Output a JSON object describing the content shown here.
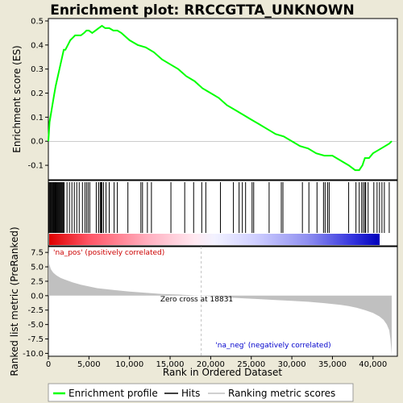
{
  "chart_data": {
    "type": "line",
    "title": "Enrichment plot: RRCCGTTA_UNKNOWN",
    "xlabel": "Rank in Ordered Dataset",
    "ylabel_top": "Enrichment score (ES)",
    "ylabel_bottom": "Ranked list metric (PreRanked)",
    "x_range": [
      0,
      43000
    ],
    "x_ticks": [
      0,
      5000,
      10000,
      15000,
      20000,
      25000,
      30000,
      35000,
      40000
    ],
    "x_tick_labels": [
      "0",
      "5,000",
      "10,000",
      "15,000",
      "20,000",
      "25,000",
      "30,000",
      "35,000",
      "40,000"
    ],
    "es_ylim": [
      -0.16,
      0.51
    ],
    "es_ticks": [
      -0.1,
      0.0,
      0.1,
      0.2,
      0.3,
      0.4,
      0.5
    ],
    "es_tick_labels": [
      "-0.1",
      "0.0",
      "0.1",
      "0.2",
      "0.3",
      "0.4",
      "0.5"
    ],
    "metric_ylim": [
      -10.5,
      8.5
    ],
    "metric_ticks": [
      7.5,
      5.0,
      2.5,
      0.0,
      -2.5,
      -5.0,
      -7.5,
      -10.0
    ],
    "metric_tick_labels": [
      "7.5",
      "5.0",
      "2.5",
      "0.0",
      "-2.5",
      "-5.0",
      "-7.5",
      "-10.0"
    ],
    "enrichment_profile": {
      "x": [
        0,
        150,
        300,
        500,
        700,
        900,
        1100,
        1300,
        1500,
        1700,
        1900,
        2100,
        2400,
        2700,
        3000,
        3300,
        3600,
        4000,
        4400,
        4700,
        5000,
        5400,
        5800,
        6200,
        6600,
        7000,
        7500,
        8000,
        8500,
        9000,
        10000,
        11000,
        12000,
        13000,
        14000,
        15000,
        16000,
        17000,
        18000,
        19000,
        20000,
        21000,
        22000,
        23000,
        24000,
        25000,
        26000,
        27000,
        28000,
        29000,
        30000,
        31000,
        32000,
        33000,
        34000,
        35000,
        36000,
        37000,
        37800,
        38300,
        38700,
        39000,
        39500,
        40000,
        40500,
        41000,
        41500,
        42000,
        42300
      ],
      "y": [
        0.0,
        0.08,
        0.11,
        0.15,
        0.19,
        0.23,
        0.26,
        0.29,
        0.32,
        0.35,
        0.38,
        0.38,
        0.4,
        0.42,
        0.43,
        0.44,
        0.44,
        0.44,
        0.45,
        0.46,
        0.46,
        0.45,
        0.46,
        0.47,
        0.48,
        0.47,
        0.47,
        0.46,
        0.46,
        0.45,
        0.42,
        0.4,
        0.39,
        0.37,
        0.34,
        0.32,
        0.3,
        0.27,
        0.25,
        0.22,
        0.2,
        0.18,
        0.15,
        0.13,
        0.11,
        0.09,
        0.07,
        0.05,
        0.03,
        0.02,
        0.0,
        -0.02,
        -0.03,
        -0.05,
        -0.06,
        -0.06,
        -0.08,
        -0.1,
        -0.12,
        -0.12,
        -0.1,
        -0.07,
        -0.07,
        -0.05,
        -0.04,
        -0.03,
        -0.02,
        -0.01,
        0.0
      ]
    },
    "hits": [
      80,
      180,
      260,
      340,
      420,
      520,
      600,
      700,
      800,
      880,
      960,
      1050,
      1150,
      1250,
      1350,
      1450,
      1550,
      1650,
      1750,
      1850,
      1950,
      2300,
      2600,
      2900,
      3200,
      3500,
      3800,
      4200,
      4500,
      4700,
      4900,
      5100,
      5900,
      6200,
      6400,
      6500,
      6600,
      6800,
      7100,
      7500,
      8100,
      8500,
      9800,
      11400,
      11600,
      12200,
      12700,
      15100,
      16800,
      17900,
      18900,
      19400,
      21200,
      22800,
      23500,
      23900,
      24300,
      25100,
      25300,
      27200,
      28700,
      28900,
      31300,
      32100,
      33100,
      33900,
      34100,
      34400,
      34600,
      37000,
      37900,
      38300,
      38600,
      38800,
      39000,
      39100,
      39400,
      40100,
      40500,
      40800,
      41100,
      41400,
      42000
    ],
    "metric_curve": {
      "x": [
        0,
        100,
        300,
        600,
        1000,
        1500,
        2000,
        3000,
        4000,
        5000,
        6000,
        8000,
        10000,
        12000,
        14000,
        16000,
        18000,
        18831,
        20000,
        22000,
        24000,
        26000,
        28000,
        30000,
        32000,
        34000,
        36000,
        37000,
        38000,
        39000,
        40000,
        40800,
        41300,
        41700,
        42000,
        42150,
        42300
      ],
      "y": [
        8.0,
        5.5,
        4.6,
        4.0,
        3.5,
        3.1,
        2.8,
        2.3,
        1.9,
        1.6,
        1.3,
        1.0,
        0.7,
        0.5,
        0.3,
        0.2,
        0.05,
        0.0,
        -0.1,
        -0.3,
        -0.45,
        -0.6,
        -0.75,
        -0.9,
        -1.05,
        -1.3,
        -1.6,
        -1.8,
        -2.1,
        -2.5,
        -3.0,
        -3.6,
        -4.2,
        -5.0,
        -6.0,
        -7.5,
        -10.2
      ]
    },
    "zero_cross": 18831,
    "zero_cross_label": "Zero cross at 18831",
    "pos_label": "'na_pos' (positively correlated)",
    "neg_label": "'na_neg' (negatively correlated)",
    "legend": {
      "placement": "bottom",
      "items": [
        {
          "label": "Enrichment profile",
          "color": "#00ff00"
        },
        {
          "label": "Hits",
          "color": "#000000"
        },
        {
          "label": "Ranking metric scores",
          "color": "#c0c0c0"
        }
      ]
    },
    "colors": {
      "profile": "#00ff00",
      "hits": "#000000",
      "metric": "#c0c0c0",
      "pos_text": "#cc0000",
      "neg_text": "#0000cc",
      "zero_line": "#c0c0c0"
    }
  }
}
